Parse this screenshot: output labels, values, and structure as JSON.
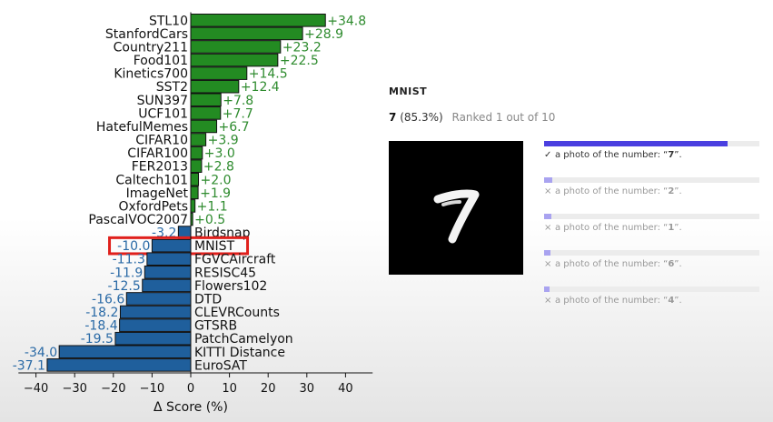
{
  "chart_data": {
    "type": "bar",
    "orientation": "horizontal",
    "xlabel": "Δ Score (%)",
    "xlim": [
      -45,
      47
    ],
    "xticks": [
      -40,
      -30,
      -20,
      -10,
      0,
      10,
      20,
      30,
      40
    ],
    "highlighted_category": "MNIST",
    "colors": {
      "positive": "#238b22",
      "negative": "#1f5f9c",
      "positive_label": "#2e8b2e",
      "negative_label": "#2a6aa6",
      "highlight": "#e0201c"
    },
    "categories": [
      "STL10",
      "StanfordCars",
      "Country211",
      "Food101",
      "Kinetics700",
      "SST2",
      "SUN397",
      "UCF101",
      "HatefulMemes",
      "CIFAR10",
      "CIFAR100",
      "FER2013",
      "Caltech101",
      "ImageNet",
      "OxfordPets",
      "PascalVOC2007",
      "Birdsnap",
      "MNIST",
      "FGVCAircraft",
      "RESISC45",
      "Flowers102",
      "DTD",
      "CLEVRCounts",
      "GTSRB",
      "PatchCamelyon",
      "KITTI Distance",
      "EuroSAT"
    ],
    "values": [
      34.8,
      28.9,
      23.2,
      22.5,
      14.5,
      12.4,
      7.8,
      7.7,
      6.7,
      3.9,
      3.0,
      2.8,
      2.0,
      1.9,
      1.1,
      0.5,
      -3.2,
      -10.0,
      -11.3,
      -11.9,
      -12.5,
      -16.6,
      -18.2,
      -18.4,
      -19.5,
      -34.0,
      -37.1
    ],
    "value_labels": [
      "+34.8",
      "+28.9",
      "+23.2",
      "+22.5",
      "+14.5",
      "+12.4",
      "+7.8",
      "+7.7",
      "+6.7",
      "+3.9",
      "+3.0",
      "+2.8",
      "+2.0",
      "+1.9",
      "+1.1",
      "+0.5",
      "-3.2",
      "-10.0",
      "-11.3",
      "-11.9",
      "-12.5",
      "-16.6",
      "-18.2",
      "-18.4",
      "-19.5",
      "-34.0",
      "-37.1"
    ]
  },
  "panel": {
    "title": "MNIST",
    "prediction": "7",
    "confidence": "(85.3%)",
    "rank_text": "Ranked 1 out of 10",
    "accent_color": "#4a3fe0",
    "minor_color": "#a9a3f0",
    "options": [
      {
        "mark": "✓",
        "prefix": "a photo of the number: “",
        "value": "7",
        "suffix": "”.",
        "score": 0.853,
        "correct": true
      },
      {
        "mark": "×",
        "prefix": "a photo of the number: “",
        "value": "2",
        "suffix": "”.",
        "score": 0.04,
        "correct": false
      },
      {
        "mark": "×",
        "prefix": "a photo of the number: “",
        "value": "1",
        "suffix": "”.",
        "score": 0.035,
        "correct": false
      },
      {
        "mark": "×",
        "prefix": "a photo of the number: “",
        "value": "6",
        "suffix": "”.",
        "score": 0.03,
        "correct": false
      },
      {
        "mark": "×",
        "prefix": "a photo of the number: “",
        "value": "4",
        "suffix": "”.",
        "score": 0.025,
        "correct": false
      }
    ]
  }
}
